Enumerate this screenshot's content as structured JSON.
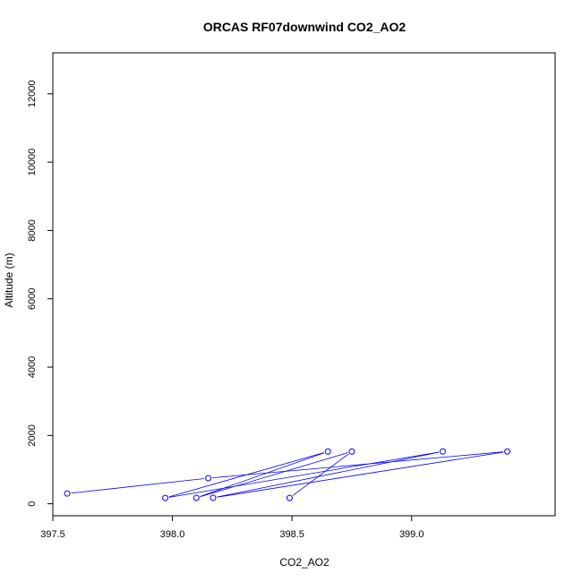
{
  "chart_data": {
    "type": "line",
    "title": "ORCAS RF07downwind CO2_AO2",
    "xlabel": "CO2_AO2",
    "ylabel": "Altitude (m)",
    "xlim": [
      397.5,
      399.6
    ],
    "ylim": [
      -350,
      13200
    ],
    "x_ticks": [
      397.5,
      398.0,
      398.5,
      399.0
    ],
    "x_tick_labels": [
      "397.5",
      "398.0",
      "398.5",
      "399.0"
    ],
    "y_ticks": [
      0,
      2000,
      4000,
      6000,
      8000,
      10000,
      12000
    ],
    "y_tick_labels": [
      "0",
      "2000",
      "4000",
      "6000",
      "8000",
      "10000",
      "12000"
    ],
    "grid": false,
    "series_color": "#0000ff",
    "series": [
      {
        "x": [
          397.56,
          398.15,
          399.4,
          398.17,
          399.13,
          397.97,
          398.65,
          398.1,
          398.75,
          398.49
        ],
        "y": [
          300,
          750,
          1530,
          175,
          1530,
          170,
          1530,
          175,
          1530,
          170
        ]
      }
    ]
  }
}
